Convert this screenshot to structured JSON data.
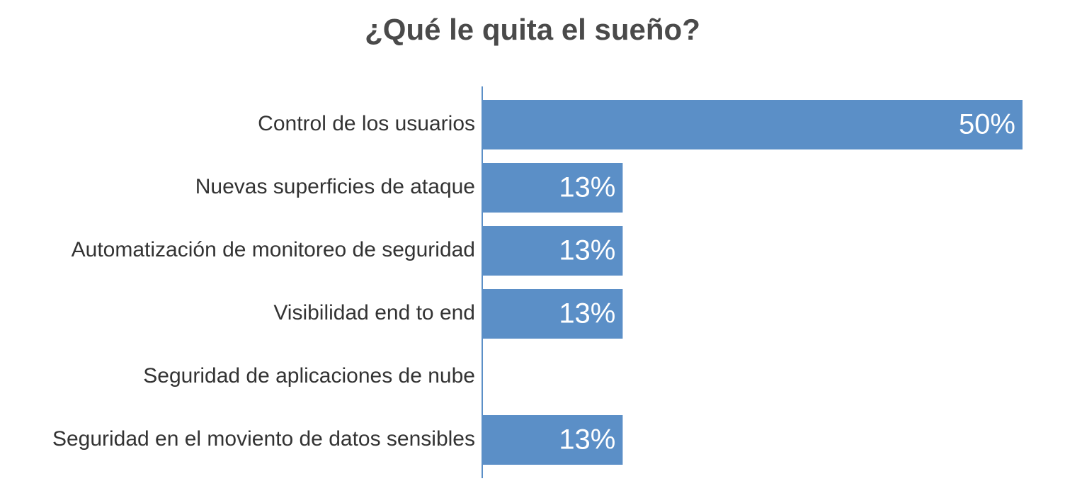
{
  "chart_data": {
    "type": "bar",
    "orientation": "horizontal",
    "title": "¿Qué le quita el sueño?",
    "categories": [
      "Control de los usuarios",
      "Nuevas superficies de ataque",
      "Automatización de monitoreo de seguridad",
      "Visibilidad end to end",
      "Seguridad de aplicaciones de nube",
      "Seguridad en el moviento de datos sensibles"
    ],
    "values": [
      50,
      13,
      13,
      13,
      0,
      13
    ],
    "data_labels": [
      "50%",
      "13%",
      "13%",
      "13%",
      "",
      "13%"
    ],
    "xlim": [
      0,
      50
    ],
    "grid": false,
    "legend": "none",
    "bar_color": "#5b8fc7",
    "axis_color": "#5b8fc7"
  }
}
